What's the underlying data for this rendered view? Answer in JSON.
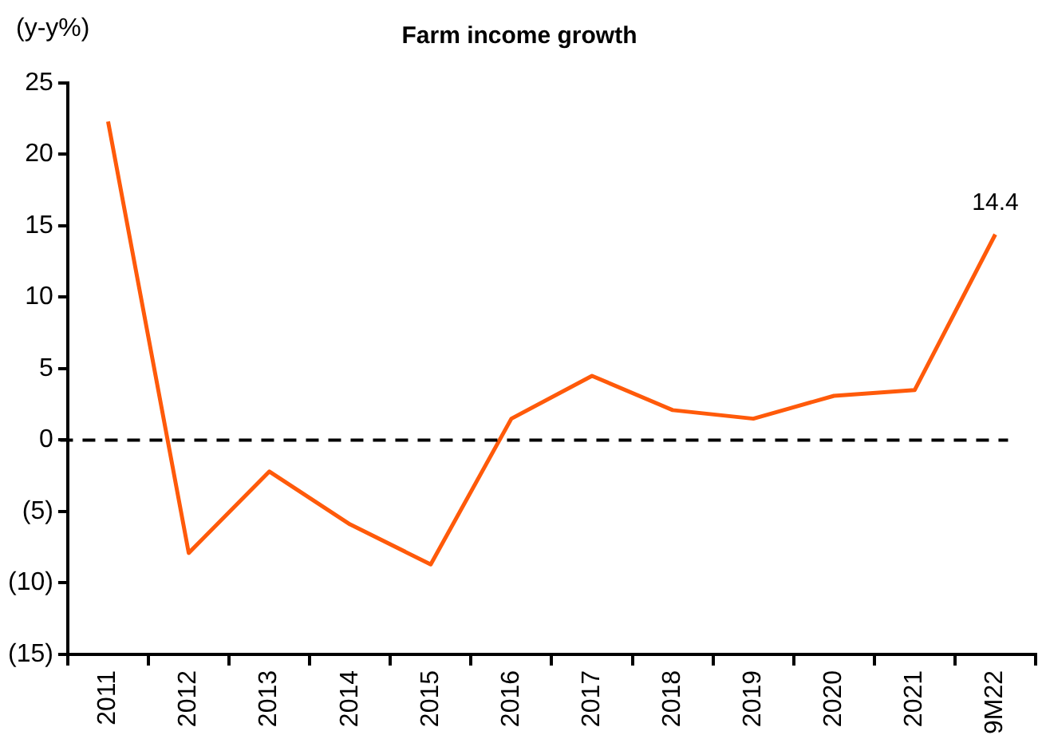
{
  "chart_data": {
    "type": "line",
    "title": "Farm income growth",
    "ylabel": "(y-y%)",
    "categories": [
      "2011",
      "2012",
      "2013",
      "2014",
      "2015",
      "2016",
      "2017",
      "2018",
      "2019",
      "2020",
      "2021",
      "9M22"
    ],
    "series": [
      {
        "color": "#ff5a0a",
        "values": [
          22.3,
          -7.9,
          -2.2,
          -5.9,
          -8.7,
          1.5,
          4.5,
          2.1,
          1.5,
          3.1,
          3.5,
          14.4
        ],
        "value_labels": [
          null,
          null,
          null,
          null,
          null,
          null,
          null,
          null,
          null,
          null,
          null,
          "14.4"
        ]
      }
    ],
    "ylim": [
      -15,
      25
    ],
    "yticks": [
      {
        "value": -15,
        "label": "(15)"
      },
      {
        "value": -10,
        "label": "(10)"
      },
      {
        "value": -5,
        "label": "(5)"
      },
      0,
      5,
      10,
      15,
      20,
      25
    ],
    "ref_lines": [
      {
        "axis": "y",
        "value": 0,
        "color": "#000000",
        "line_style": "dashed"
      }
    ],
    "grid": false,
    "legend": false,
    "marker": "none",
    "line_style": "solid"
  }
}
